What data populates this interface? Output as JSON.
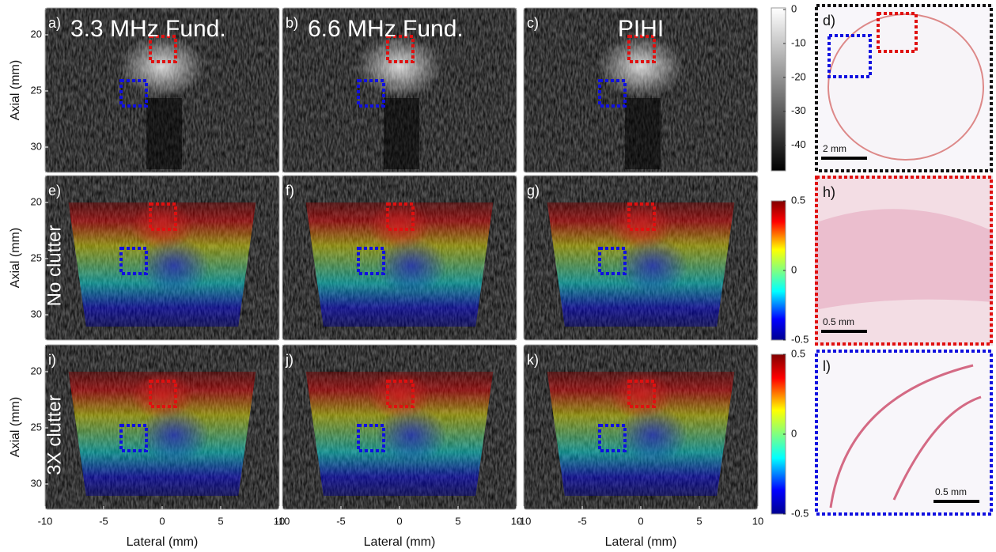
{
  "panels": [
    {
      "label": "a)",
      "title": "3.3 MHz Fund."
    },
    {
      "label": "b)",
      "title": "6.6 MHz Fund."
    },
    {
      "label": "c)",
      "title": "PIHI"
    },
    {
      "label": "e)"
    },
    {
      "label": "f)"
    },
    {
      "label": "g)"
    },
    {
      "label": "i)"
    },
    {
      "label": "j)"
    },
    {
      "label": "k)"
    }
  ],
  "row_labels": [
    "No clutter",
    "3X clutter"
  ],
  "y_axis_label": "Axial (mm)",
  "y_ticks": [
    20,
    25,
    30
  ],
  "x_axis_label": "Lateral (mm)",
  "x_ticks": [
    -10,
    -5,
    0,
    5,
    10
  ],
  "colorbars": [
    {
      "ticks": [
        0,
        -10,
        -20,
        -30,
        -40
      ]
    },
    {
      "ticks": [
        0.5,
        0,
        -0.5
      ]
    },
    {
      "ticks": [
        0.5,
        0,
        -0.5
      ]
    }
  ],
  "histology": [
    {
      "label": "d)",
      "scale": "2 mm"
    },
    {
      "label": "h)",
      "scale": "0.5 mm"
    },
    {
      "label": "l)",
      "scale": "0.5 mm"
    }
  ]
}
